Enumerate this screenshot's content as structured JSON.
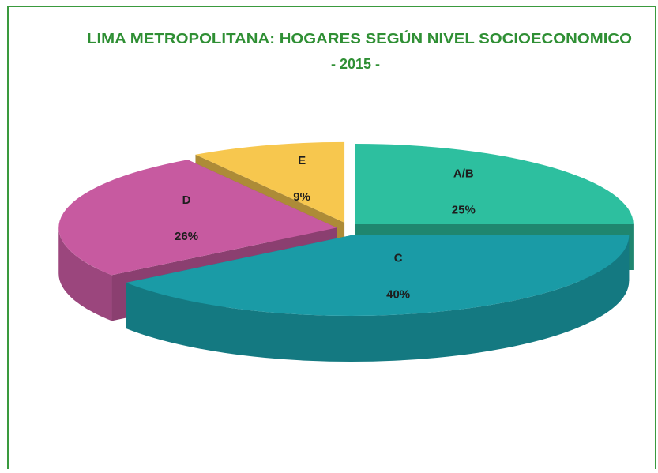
{
  "chart_data": {
    "type": "pie3d",
    "title": "LIMA METROPOLITANA: HOGARES SEGÚN NIVEL SOCIOECONOMICO",
    "subtitle": "- 2015 -",
    "categories": [
      "A/B",
      "C",
      "D",
      "E"
    ],
    "values": [
      25,
      40,
      26,
      9
    ],
    "value_labels": [
      "25%",
      "40%",
      "26%",
      "9%"
    ],
    "colors": [
      "#2dbf9f",
      "#1a9ba6",
      "#c75aa0",
      "#f7c74e"
    ]
  }
}
